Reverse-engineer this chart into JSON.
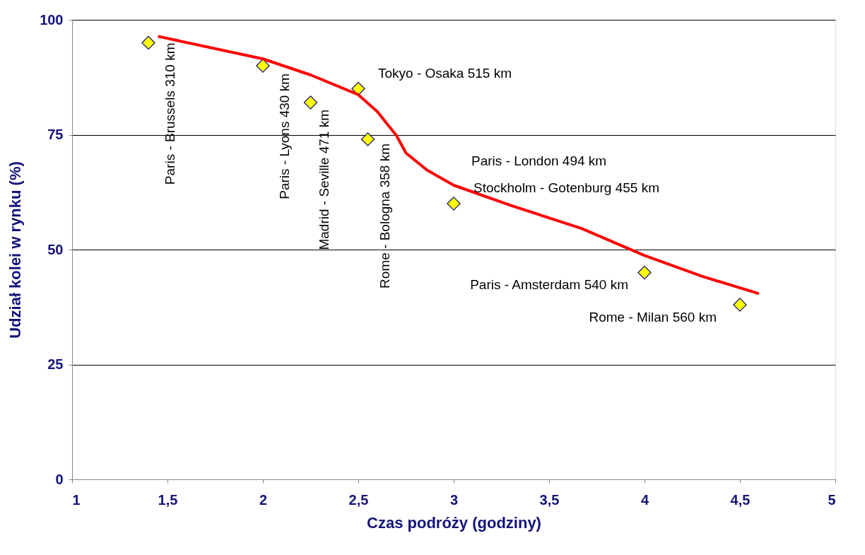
{
  "chart_data": {
    "type": "scatter",
    "xlabel": "Czas podróży (godziny)",
    "ylabel": "Udział kolei w rynku (%)",
    "xlim": [
      1,
      5
    ],
    "ylim": [
      0,
      100
    ],
    "xticks": [
      1,
      {
        "value": 1.5,
        "label": "1,5"
      },
      2,
      {
        "value": 2.5,
        "label": "2,5"
      },
      3,
      {
        "value": 3.5,
        "label": "3,5"
      },
      4,
      {
        "value": 4.5,
        "label": "4,5"
      },
      5
    ],
    "yticks": [
      0,
      25,
      50,
      75,
      100
    ],
    "grid": "y",
    "marker": "diamond",
    "series": [
      {
        "color": "#ffff00",
        "x": [
          1.4,
          2,
          2.25,
          2.5,
          2.55,
          3,
          4,
          4.5
        ],
        "values": [
          95,
          90,
          82,
          85,
          74,
          60,
          45,
          38
        ]
      },
      {
        "type": "line",
        "color": "#ff0000",
        "marker": "none",
        "line_style": "solid",
        "x": [
          1.45,
          2.0,
          2.25,
          2.5,
          2.6,
          2.7,
          2.75,
          2.86,
          3.0,
          3.3,
          3.67,
          4.0,
          4.3,
          4.6
        ],
        "values": [
          96.4,
          91.5,
          88,
          83.7,
          80,
          74.8,
          71,
          67.3,
          64,
          59.6,
          54.6,
          48.7,
          44.2,
          40.4
        ]
      }
    ],
    "annotations": [
      {
        "text": "Paris - Brussels 310 km",
        "x": 1.4,
        "y": 95
      },
      {
        "text": "Paris - Lyons 430 km",
        "x": 2,
        "y": 90
      },
      {
        "text": "Madrid - Seville 471 km",
        "x": 2.25,
        "y": 82
      },
      {
        "text": "Rome - Bologna 358 km",
        "x": 2.55,
        "y": 74
      },
      {
        "text": "Tokyo - Osaka 515 km",
        "x": 2.5,
        "y": 85
      },
      "Paris - London 494 km",
      {
        "text": "Stockholm - Gotenburg 455 km",
        "x": 3,
        "y": 60
      },
      {
        "text": "Paris - Amsterdam 540 km",
        "x": 4,
        "y": 45
      },
      {
        "text": "Rome - Milan 560 km",
        "x": 4.5,
        "y": 38
      }
    ]
  }
}
